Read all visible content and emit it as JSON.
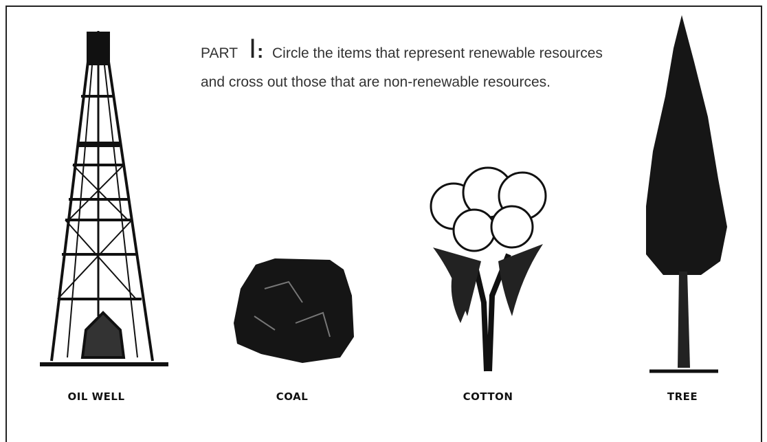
{
  "heading": {
    "part": "PART",
    "number": "I",
    "separator": ":",
    "line1": "Circle the items that represent renewable resources",
    "line2": "and cross out those that are non-renewable resources."
  },
  "items": [
    {
      "label": "OIL WELL"
    },
    {
      "label": "COAL"
    },
    {
      "label": "COTTON"
    },
    {
      "label": "TREE"
    }
  ]
}
